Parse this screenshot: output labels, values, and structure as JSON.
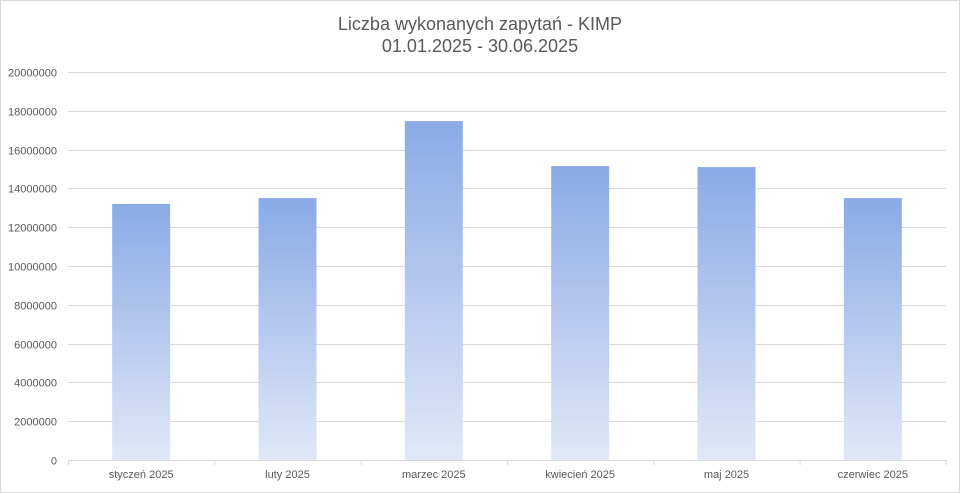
{
  "chart_data": {
    "type": "bar",
    "title": "Liczba wykonanych zapytań - KIMP",
    "subtitle": "01.01.2025 - 30.06.2025",
    "categories": [
      "styczeń 2025",
      "luty 2025",
      "marzec 2025",
      "kwiecień 2025",
      "maj 2025",
      "czerwiec 2025"
    ],
    "values": [
      13200000,
      13500000,
      17470000,
      15150000,
      15100000,
      13500000
    ],
    "xlabel": "",
    "ylabel": "",
    "ylim": [
      0,
      20000000
    ],
    "yticks": [
      "0",
      "2000000",
      "4000000",
      "6000000",
      "8000000",
      "10000000",
      "12000000",
      "14000000",
      "16000000",
      "18000000",
      "20000000"
    ],
    "grid": true,
    "legend": "none",
    "colors": {
      "bar_top": "#8aaae6",
      "bar_bottom": "#e1e8f8",
      "grid": "#d9d9d9",
      "text": "#595959"
    }
  }
}
